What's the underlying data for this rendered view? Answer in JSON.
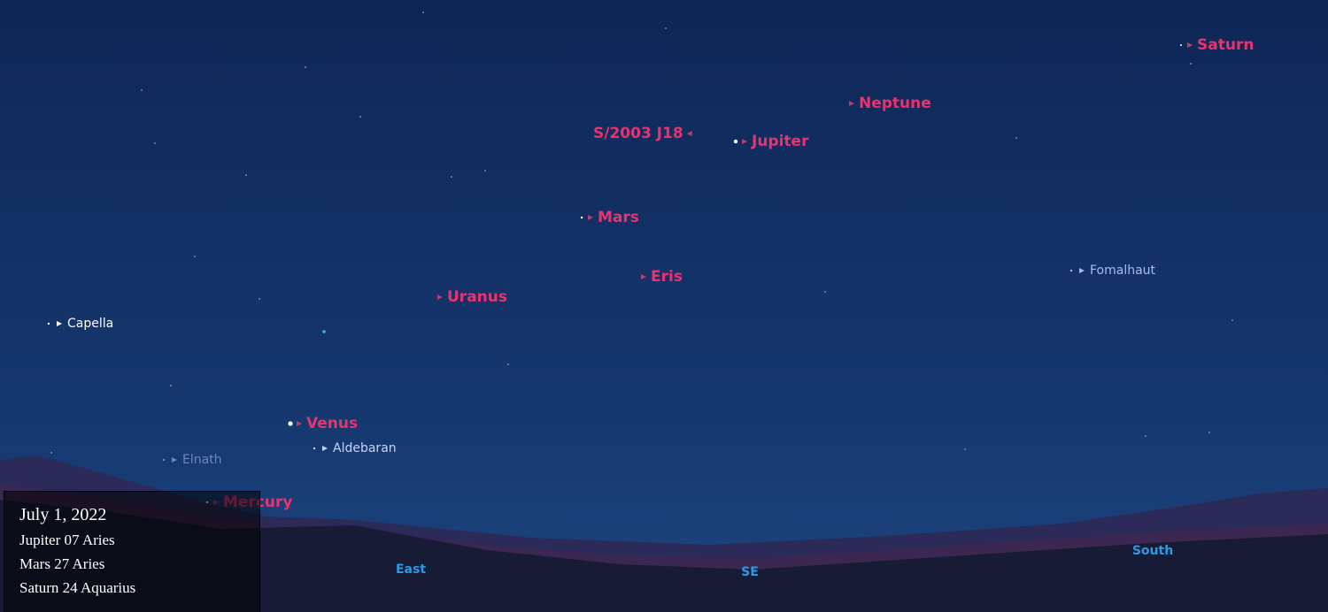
{
  "sky_labels": {
    "planets": [
      "Saturn",
      "Neptune",
      "S/2003 J18",
      "Jupiter",
      "Mars",
      "Eris",
      "Uranus",
      "Venus",
      "Mercury"
    ],
    "stars": [
      "Capella",
      "Fomalhaut",
      "Aldebaran",
      "Elnath"
    ]
  },
  "directions": [
    "East",
    "SE",
    "South"
  ],
  "caption": {
    "date": "July 1, 2022",
    "lines": [
      "Jupiter 07 Aries",
      "Mars 27 Aries",
      "Saturn 24 Aquarius"
    ]
  }
}
